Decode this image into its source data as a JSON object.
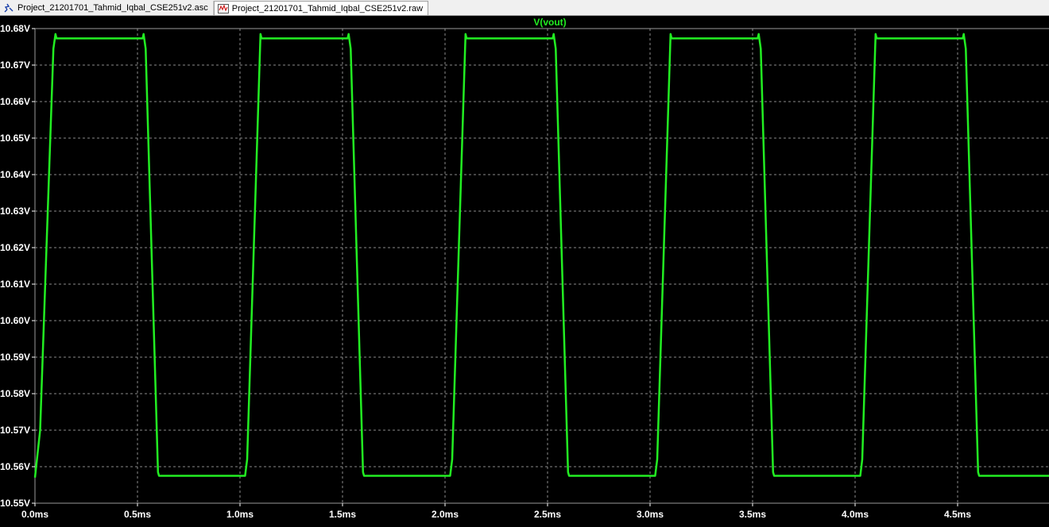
{
  "tabs": [
    {
      "label": "Project_21201701_Tahmid_Iqbal_CSE251v2.asc",
      "icon": "schematic-icon"
    },
    {
      "label": "Project_21201701_Tahmid_Iqbal_CSE251v2.raw",
      "icon": "waveform-icon"
    }
  ],
  "colors": {
    "trace": "#22ee22",
    "background": "#000000",
    "grid": "#8a8a8a",
    "labels": "#ffffff",
    "title": "#22ee22"
  },
  "chart_data": {
    "type": "line",
    "title": "V(vout)",
    "xlabel": "",
    "ylabel": "",
    "xlim": [
      0,
      5.0
    ],
    "ylim": [
      10.55,
      10.68
    ],
    "x_ticks": [
      0.0,
      0.5,
      1.0,
      1.5,
      2.0,
      2.5,
      3.0,
      3.5,
      4.0,
      4.5
    ],
    "x_tick_labels": [
      "0.0ms",
      "0.5ms",
      "1.0ms",
      "1.5ms",
      "2.0ms",
      "2.5ms",
      "3.0ms",
      "3.5ms",
      "4.0ms",
      "4.5ms"
    ],
    "y_ticks": [
      10.68,
      10.67,
      10.66,
      10.65,
      10.64,
      10.63,
      10.62,
      10.61,
      10.6,
      10.59,
      10.58,
      10.57,
      10.56,
      10.55
    ],
    "y_tick_labels": [
      "10.68V",
      "10.67V",
      "10.66V",
      "10.65V",
      "10.64V",
      "10.63V",
      "10.62V",
      "10.61V",
      "10.60V",
      "10.59V",
      "10.58V",
      "10.57V",
      "10.56V",
      "10.55V"
    ],
    "grid": true,
    "series": [
      {
        "name": "V(vout)",
        "x": [
          0.0,
          0.025,
          0.09,
          0.1,
          0.105,
          0.525,
          0.53,
          0.54,
          0.6,
          0.605,
          1.025,
          1.035,
          1.1,
          1.105,
          1.525,
          1.53,
          1.54,
          1.6,
          1.605,
          2.025,
          2.035,
          2.1,
          2.105,
          2.525,
          2.53,
          2.54,
          2.6,
          2.605,
          3.025,
          3.035,
          3.1,
          3.105,
          3.525,
          3.53,
          3.54,
          3.6,
          3.605,
          4.025,
          4.035,
          4.1,
          4.105,
          4.525,
          4.53,
          4.54,
          4.6,
          4.605,
          5.0
        ],
        "y": [
          10.557,
          10.57,
          10.6745,
          10.6785,
          10.6773,
          10.6773,
          10.6785,
          10.6745,
          10.5585,
          10.5575,
          10.5575,
          10.562,
          10.6785,
          10.6773,
          10.6773,
          10.6785,
          10.6745,
          10.5585,
          10.5575,
          10.5575,
          10.562,
          10.6785,
          10.6773,
          10.6773,
          10.6785,
          10.6745,
          10.5585,
          10.5575,
          10.5575,
          10.562,
          10.6785,
          10.6773,
          10.6773,
          10.6785,
          10.6745,
          10.5585,
          10.5575,
          10.5575,
          10.562,
          10.6785,
          10.6773,
          10.6773,
          10.6785,
          10.6745,
          10.5585,
          10.5575,
          10.5575
        ]
      }
    ]
  }
}
